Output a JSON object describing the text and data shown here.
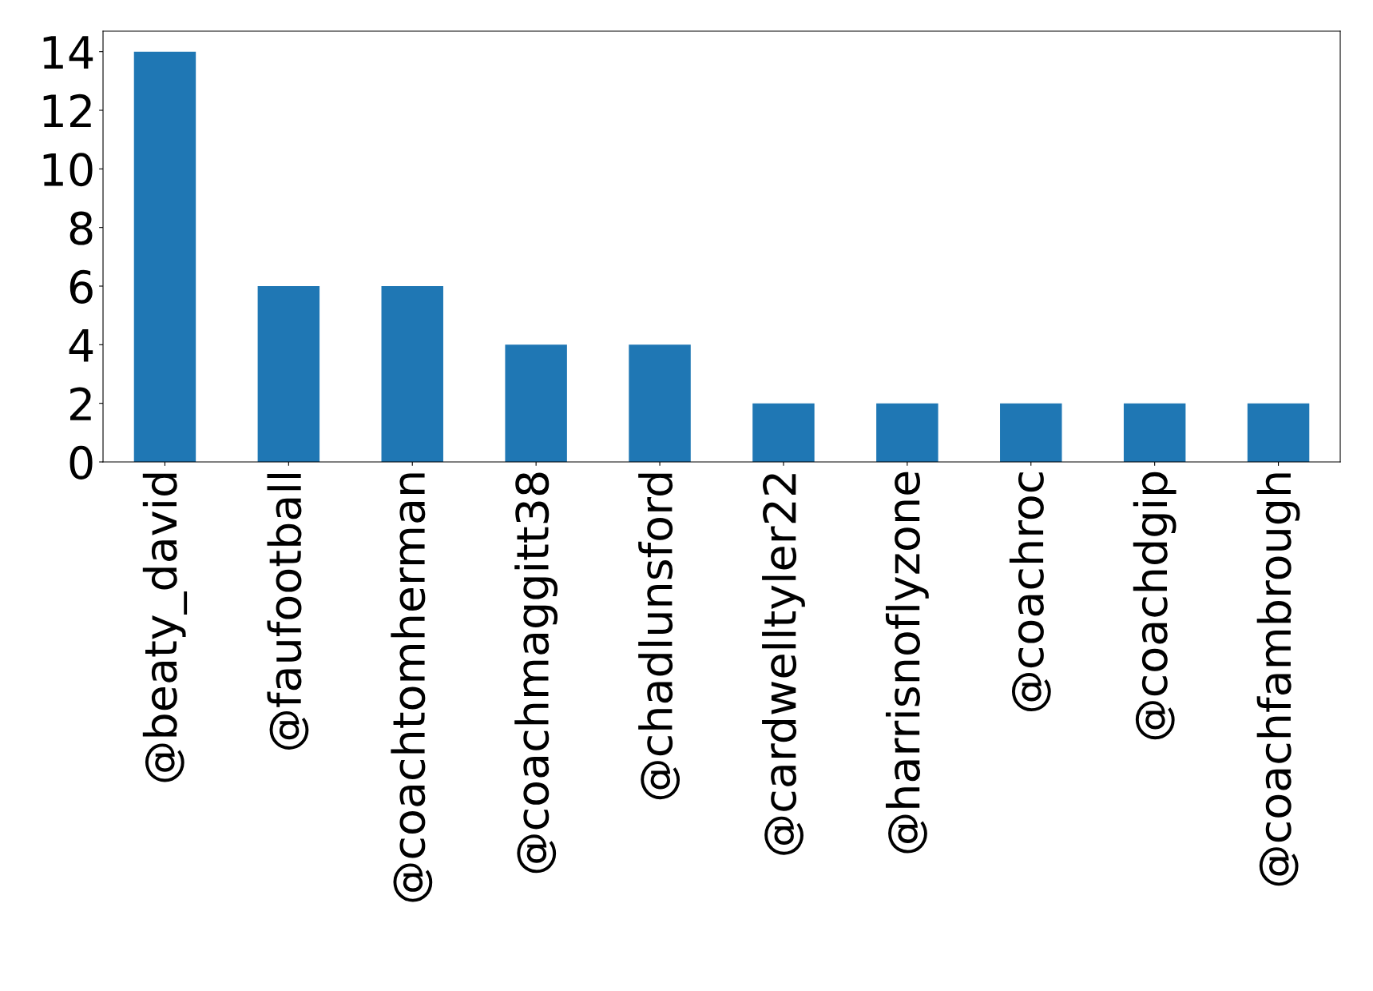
{
  "chart_data": {
    "type": "bar",
    "categories": [
      "@beaty_david",
      "@faufootball",
      "@coachtomherman",
      "@coachmaggitt38",
      "@chadlunsford",
      "@cardwelltyler22",
      "@harrisnoflyzone",
      "@coachroc",
      "@coachdgip",
      "@coachfambrough"
    ],
    "values": [
      14,
      6,
      6,
      4,
      4,
      2,
      2,
      2,
      2,
      2
    ],
    "color": "#1f77b4",
    "ylim": [
      0,
      14.7
    ],
    "yticks": [
      0,
      2,
      4,
      6,
      8,
      10,
      12,
      14
    ],
    "grid": false,
    "legend": false
  }
}
